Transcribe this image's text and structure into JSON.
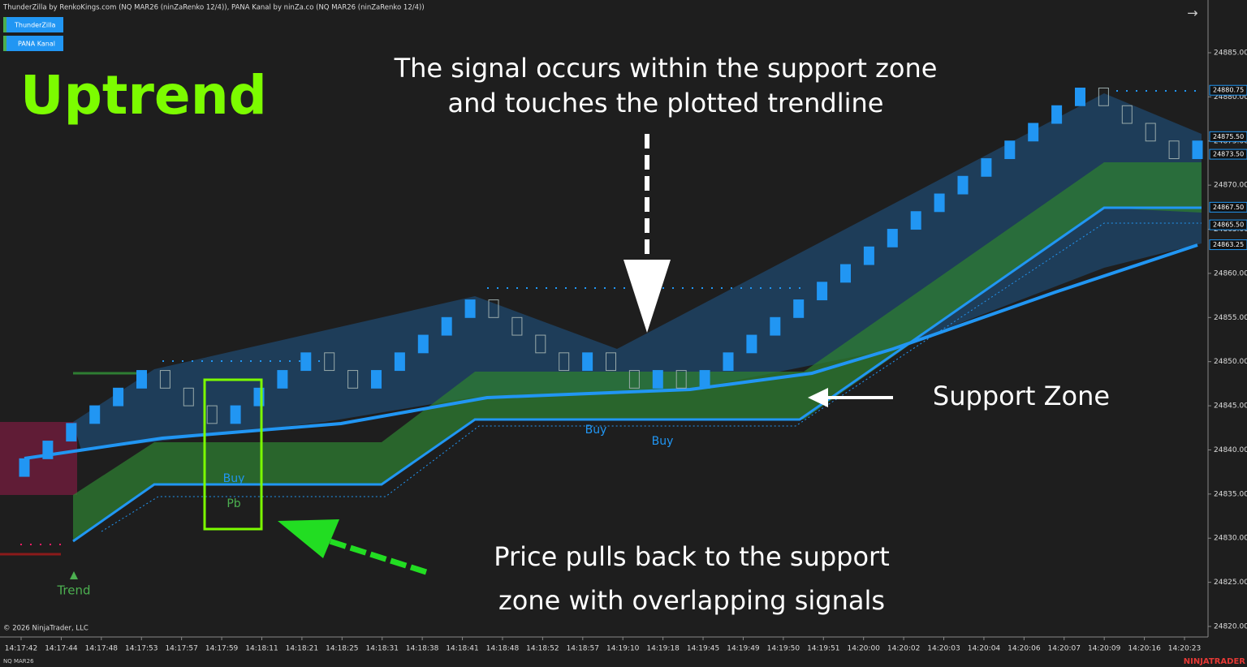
{
  "header": {
    "title": "ThunderZilla by RenkoKings.com (NQ MAR26 (ninZaRenko 12/4)), PANA Kanal by ninZa.co (NQ MAR26 (ninZaRenko 12/4))"
  },
  "legend": [
    "ThunderZilla",
    "PANA Kanal"
  ],
  "headline": "Uptrend",
  "annotations": {
    "signal": [
      "The signal occurs within the support zone",
      "and touches the plotted trendline"
    ],
    "zone": "Support Zone",
    "pullback": [
      "Price pulls back to the support",
      "zone with overlapping signals"
    ]
  },
  "signals": {
    "buy": "Buy",
    "pullback": "Pb",
    "trend": "Trend"
  },
  "bars": {
    "open": [
      24837,
      24839,
      24841,
      24843,
      24845,
      24847,
      24849,
      24847,
      24845,
      24843,
      24845,
      24847,
      24849,
      24851,
      24849,
      24847,
      24849,
      24851,
      24853,
      24855,
      24857,
      24855,
      24853,
      24851,
      24849,
      24851,
      24849,
      24847,
      24849,
      24847,
      24849,
      24851,
      24853,
      24855,
      24857,
      24859,
      24861,
      24863,
      24865,
      24867,
      24869,
      24871,
      24873,
      24875,
      24877,
      24879,
      24881,
      24879,
      24877,
      24875,
      24873
    ],
    "close": [
      24839,
      24841,
      24843,
      24845,
      24847,
      24849,
      24847,
      24845,
      24843,
      24845,
      24847,
      24849,
      24851,
      24849,
      24847,
      24849,
      24851,
      24853,
      24855,
      24857,
      24855,
      24853,
      24851,
      24849,
      24851,
      24849,
      24847,
      24849,
      24847,
      24849,
      24851,
      24853,
      24855,
      24857,
      24859,
      24861,
      24863,
      24865,
      24867,
      24869,
      24871,
      24873,
      24875,
      24877,
      24879,
      24881,
      24879,
      24877,
      24875,
      24873,
      24875
    ]
  },
  "price_axis": {
    "ylim": [
      24820,
      24885
    ],
    "ticks": [
      {
        "value": 24820,
        "label": "24820.00"
      },
      {
        "value": 24825,
        "label": "24825.00"
      },
      {
        "value": 24830,
        "label": "24830.00"
      },
      {
        "value": 24835,
        "label": "24835.00"
      },
      {
        "value": 24840,
        "label": "24840.00"
      },
      {
        "value": 24845,
        "label": "24845.00"
      },
      {
        "value": 24850,
        "label": "24850.00"
      },
      {
        "value": 24855,
        "label": "24855.00"
      },
      {
        "value": 24860,
        "label": "24860.00"
      },
      {
        "value": 24865,
        "label": "24865.00"
      },
      {
        "value": 24870,
        "label": "24870.00"
      },
      {
        "value": 24875,
        "label": "24875.00"
      },
      {
        "value": 24880,
        "label": "24880.00"
      },
      {
        "value": 24885,
        "label": "24885.00"
      }
    ],
    "markers": [
      {
        "value": 24880.75,
        "label": "24880.75"
      },
      {
        "value": 24875.5,
        "label": "24875.50"
      },
      {
        "value": 24873.5,
        "label": "24873.50"
      },
      {
        "value": 24867.5,
        "label": "24867.50"
      },
      {
        "value": 24865.5,
        "label": "24865.50"
      },
      {
        "value": 24863.25,
        "label": "24863.25"
      }
    ]
  },
  "time_axis": [
    "14:17:42",
    "14:17:44",
    "14:17:48",
    "14:17:53",
    "14:17:57",
    "14:17:59",
    "14:18:11",
    "14:18:21",
    "14:18:25",
    "14:18:31",
    "14:18:38",
    "14:18:41",
    "14:18:48",
    "14:18:52",
    "14:18:57",
    "14:19:10",
    "14:19:18",
    "14:19:45",
    "14:19:49",
    "14:19:50",
    "14:19:51",
    "14:20:00",
    "14:20:02",
    "14:20:03",
    "14:20:04",
    "14:20:06",
    "14:20:07",
    "14:20:09",
    "14:20:16",
    "14:20:23"
  ],
  "footer": {
    "copyright": "© 2026 NinjaTrader, LLC",
    "instrument": "NQ MAR26",
    "brand": "NINJATRADER"
  }
}
